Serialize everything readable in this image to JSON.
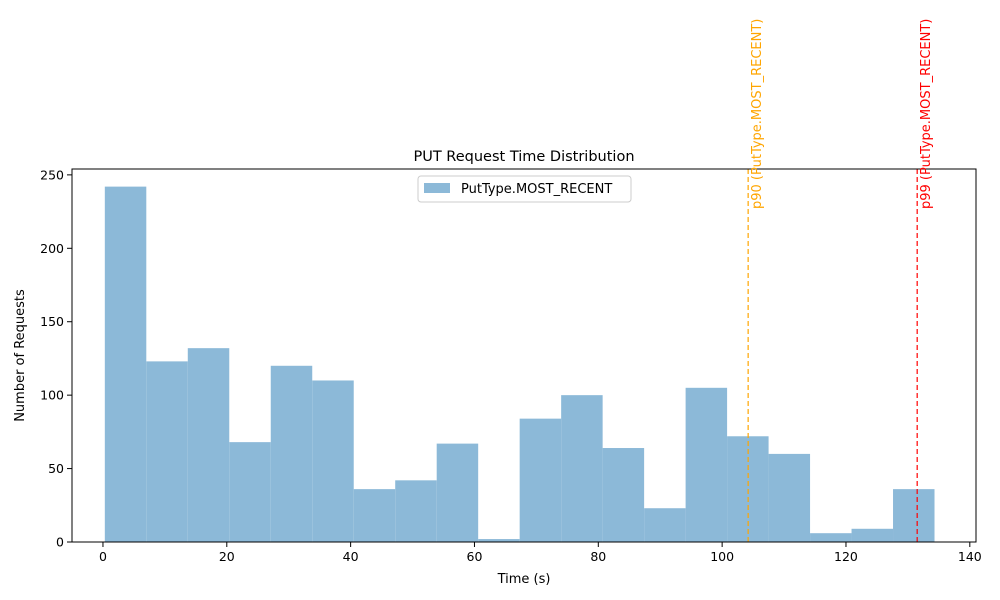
{
  "chart_data": {
    "type": "bar",
    "title": "PUT Request Time Distribution",
    "xlabel": "Time (s)",
    "ylabel": "Number of Requests",
    "xlim": [
      -5,
      141
    ],
    "ylim": [
      0,
      254
    ],
    "xticks": [
      0,
      20,
      40,
      60,
      80,
      100,
      120,
      140
    ],
    "yticks": [
      0,
      50,
      100,
      150,
      200,
      250
    ],
    "bin_edges": [
      0.3,
      7.0,
      13.7,
      20.4,
      27.1,
      33.8,
      40.5,
      47.2,
      53.9,
      60.6,
      67.3,
      74.0,
      80.7,
      87.4,
      94.1,
      100.8,
      107.5,
      114.2,
      120.9,
      127.6,
      134.3
    ],
    "series": [
      {
        "name": "PutType.MOST_RECENT",
        "values": [
          242,
          123,
          132,
          68,
          120,
          110,
          36,
          42,
          67,
          2,
          84,
          100,
          64,
          23,
          105,
          72,
          60,
          6,
          9,
          36
        ],
        "color": "#8cb9d8"
      }
    ],
    "legend": {
      "position": "top-center"
    },
    "grid": false,
    "annotations": [
      {
        "label": "p90 (PutType.MOST_RECENT)",
        "x": 104.2,
        "color": "#ffa500"
      },
      {
        "label": "p99 (PutType.MOST_RECENT)",
        "x": 131.5,
        "color": "#ff0000"
      }
    ]
  }
}
